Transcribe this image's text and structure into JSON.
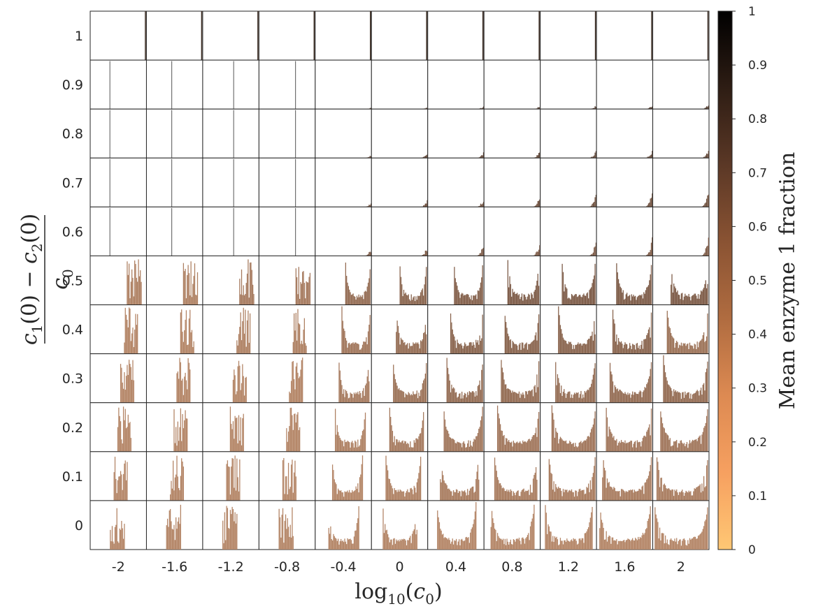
{
  "chart_data": {
    "type": "heatmap",
    "subtype": "grid of histograms",
    "xlabel": "log10(c0)",
    "ylabel": "(c1(0) − c2(0)) / c0",
    "x_ticks": [
      "-2",
      "-1.6",
      "-1.2",
      "-0.8",
      "-0.4",
      "0",
      "0.4",
      "0.8",
      "1.2",
      "1.6",
      "2"
    ],
    "y_ticks": [
      "1",
      "0.9",
      "0.8",
      "0.7",
      "0.6",
      "0.5",
      "0.4",
      "0.3",
      "0.2",
      "0.1",
      "0"
    ],
    "x_values": [
      -2,
      -1.6,
      -1.2,
      -0.8,
      -0.4,
      0,
      0.4,
      0.8,
      1.2,
      1.6,
      2
    ],
    "y_values": [
      1,
      0.9,
      0.8,
      0.7,
      0.6,
      0.5,
      0.4,
      0.3,
      0.2,
      0.1,
      0
    ],
    "colorbar": {
      "label": "Mean enzyme 1 fraction",
      "ticks": [
        "1",
        "0.9",
        "0.8",
        "0.7",
        "0.6",
        "0.5",
        "0.4",
        "0.3",
        "0.2",
        "0.1",
        "0"
      ],
      "range": [
        0,
        1
      ],
      "colors": [
        "#ffc774",
        "#f6a060",
        "#dd8a52",
        "#b06c40",
        "#8a5333",
        "#5b3826",
        "#2e1d14",
        "#000000"
      ]
    },
    "grid": false,
    "cells_note": "Each panel is a histogram; mean enzyme 1 fraction per row/column estimated from bar colour",
    "mean_fraction": [
      [
        0.9,
        0.9,
        0.9,
        0.9,
        0.9,
        0.9,
        0.9,
        0.9,
        0.9,
        0.9,
        0.9
      ],
      [
        0.7,
        0.7,
        0.7,
        0.7,
        0.7,
        0.7,
        0.7,
        0.7,
        0.7,
        0.7,
        0.7
      ],
      [
        0.65,
        0.65,
        0.65,
        0.65,
        0.65,
        0.65,
        0.65,
        0.65,
        0.65,
        0.65,
        0.65
      ],
      [
        0.6,
        0.6,
        0.6,
        0.6,
        0.6,
        0.6,
        0.6,
        0.6,
        0.6,
        0.6,
        0.6
      ],
      [
        0.55,
        0.55,
        0.55,
        0.55,
        0.55,
        0.55,
        0.55,
        0.55,
        0.55,
        0.55,
        0.55
      ],
      [
        0.35,
        0.35,
        0.38,
        0.38,
        0.45,
        0.5,
        0.52,
        0.55,
        0.55,
        0.55,
        0.55
      ],
      [
        0.33,
        0.33,
        0.35,
        0.35,
        0.4,
        0.45,
        0.5,
        0.5,
        0.5,
        0.5,
        0.42
      ],
      [
        0.33,
        0.33,
        0.33,
        0.33,
        0.38,
        0.42,
        0.45,
        0.45,
        0.45,
        0.45,
        0.45
      ],
      [
        0.33,
        0.33,
        0.33,
        0.33,
        0.35,
        0.38,
        0.4,
        0.4,
        0.4,
        0.4,
        0.4
      ],
      [
        0.33,
        0.33,
        0.33,
        0.33,
        0.33,
        0.35,
        0.37,
        0.37,
        0.37,
        0.37,
        0.37
      ],
      [
        0.33,
        0.33,
        0.33,
        0.33,
        0.33,
        0.33,
        0.33,
        0.33,
        0.33,
        0.33,
        0.33
      ]
    ]
  }
}
